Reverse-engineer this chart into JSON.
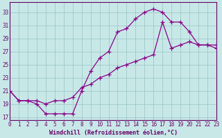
{
  "xlabel": "Windchill (Refroidissement éolien,°C)",
  "x_hours": [
    0,
    1,
    2,
    3,
    4,
    5,
    6,
    7,
    8,
    9,
    10,
    11,
    12,
    13,
    14,
    15,
    16,
    17,
    18,
    19,
    20,
    21,
    22,
    23
  ],
  "y_line1": [
    21,
    19.5,
    19.5,
    19.0,
    17.5,
    17.5,
    17.5,
    17.5,
    21.0,
    24.0,
    26.0,
    27.0,
    30.0,
    30.5,
    32.0,
    33.0,
    33.5,
    33.0,
    31.5,
    31.5,
    30.0,
    28.0,
    28.0,
    28.0
  ],
  "y_line2": [
    21,
    19.5,
    19.5,
    19.5,
    19.0,
    19.5,
    19.5,
    20.0,
    21.5,
    22.0,
    23.0,
    23.5,
    24.5,
    25.0,
    25.5,
    26.0,
    26.5,
    31.5,
    27.5,
    28.0,
    28.5,
    28.0,
    28.0,
    27.5
  ],
  "bg_color": "#c8e8e8",
  "line_color": "#880088",
  "grid_color": "#a0c8c8",
  "axis_color": "#660066",
  "spine_color": "#660066",
  "xlim": [
    0,
    23
  ],
  "ylim": [
    16.5,
    34.5
  ],
  "yticks": [
    17,
    19,
    21,
    23,
    25,
    27,
    29,
    31,
    33
  ],
  "xticks": [
    0,
    1,
    2,
    3,
    4,
    5,
    6,
    7,
    8,
    9,
    10,
    11,
    12,
    13,
    14,
    15,
    16,
    17,
    18,
    19,
    20,
    21,
    22,
    23
  ],
  "tick_fontsize": 5.5,
  "xlabel_fontsize": 6.0,
  "marker_size": 4,
  "line_width": 0.9
}
